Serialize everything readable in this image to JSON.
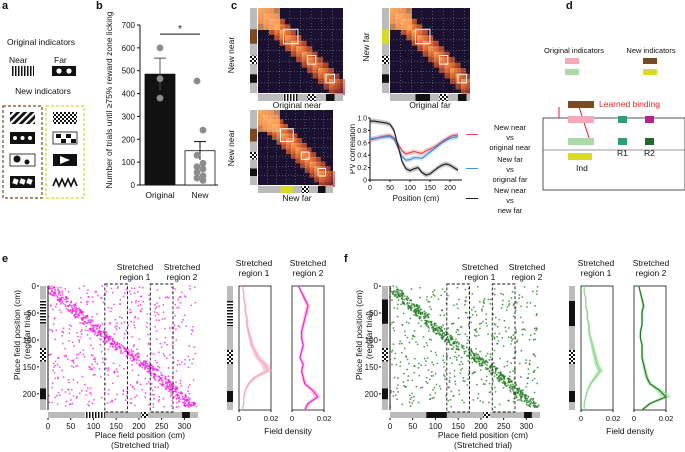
{
  "panels": {
    "a": "a",
    "b": "b",
    "c": "c",
    "d": "d",
    "e": "e",
    "f": "f"
  },
  "panel_a": {
    "original_title": "Original indicators",
    "near_label": "Near",
    "far_label": "Far",
    "new_title": "New indicators"
  },
  "panel_b": {
    "ylabel": "Number of trials until ≥75% reward zone licking",
    "significance": "*",
    "colors": {
      "original": "#111111",
      "new": "#ffffff",
      "dots": "#8c8c8c"
    }
  },
  "panel_c": {
    "mat1": {
      "ylabel": "New near",
      "xlabel": "Original near"
    },
    "mat2": {
      "ylabel": "New far",
      "xlabel": "Original far"
    },
    "mat3": {
      "ylabel": "New near",
      "xlabel": "New far"
    },
    "legend": [
      {
        "line1": "New near",
        "line2": "vs",
        "line3": "original near",
        "color": "#e8474f"
      },
      {
        "line1": "New far",
        "line2": "vs",
        "line3": "original far",
        "color": "#3d8fd6"
      },
      {
        "line1": "New near",
        "line2": "vs",
        "line3": "new far",
        "color": "#222222"
      }
    ]
  },
  "panel_d": {
    "original_title": "Original indicators",
    "new_title": "New indicators",
    "binding_label": "Learned binding",
    "ind_label": "Ind",
    "r1_label": "R1",
    "r2_label": "R2",
    "colors": {
      "orig_pink": "#f7a7b5",
      "orig_green": "#a8dba8",
      "new_brown": "#7a4a24",
      "new_yellow": "#d9d92a",
      "r1": "#2e9e74",
      "r2_pink": "#c21c8e",
      "r2_green": "#1f6b2a",
      "binding": "#d8262b"
    }
  },
  "panel_e": {
    "region1": "Stretched region 1",
    "region2": "Stretched region 2",
    "ylabel_line1": "Place field position (cm)",
    "ylabel_line2": "(regular trial)",
    "xlabel_line1": "Place field position (cm)",
    "xlabel_line2": "(Stretched trial)",
    "density_title1": "Stretched region 1",
    "density_title2": "Stretched region 2",
    "density_xlabel": "Field density",
    "color": "#ee22dd",
    "light_color": "#f7a8c2"
  },
  "panel_f": {
    "region1": "Stretched region 1",
    "region2": "Stretched region 2",
    "ylabel_line1": "Place field position (cm)",
    "ylabel_line2": "(regular trial)",
    "xlabel_line1": "Place field position (cm)",
    "xlabel_line2": "(Stretched trial)",
    "density_title1": "Stretched region 1",
    "density_title2": "Stretched region 2",
    "density_xlabel": "Field density",
    "color": "#1f7a1f",
    "light_color": "#8fd88f"
  },
  "chart_data": [
    {
      "id": "panel-b",
      "type": "bar",
      "categories": [
        "Original",
        "New"
      ],
      "values": [
        485,
        150
      ],
      "errors": [
        70,
        40
      ],
      "points": [
        [
          600,
          465,
          380
        ],
        [
          455,
          240,
          130,
          95,
          80,
          70,
          55,
          40,
          30,
          20
        ]
      ],
      "ylabel": "Number of trials until ≥75% reward zone licking",
      "ylim": [
        0,
        700
      ],
      "yticks": [
        "0",
        "100",
        "200",
        "300",
        "400",
        "500",
        "600",
        "700"
      ]
    },
    {
      "id": "panel-c-line",
      "type": "line",
      "xlabel": "Position (cm)",
      "ylabel": "PV correlation",
      "xlim": [
        0,
        230
      ],
      "ylim": [
        0,
        1
      ],
      "xticks": [
        "0",
        "50",
        "100",
        "150",
        "200"
      ],
      "yticks": [
        "0",
        "0.2",
        "0.4",
        "0.6",
        "0.8",
        "1.0"
      ],
      "x": [
        0,
        10,
        20,
        30,
        40,
        50,
        60,
        70,
        80,
        90,
        100,
        110,
        120,
        130,
        140,
        150,
        160,
        170,
        180,
        190,
        200,
        210,
        220
      ],
      "series": [
        {
          "name": "New near vs original near",
          "color": "#e8474f",
          "values": [
            0.65,
            0.66,
            0.68,
            0.7,
            0.71,
            0.72,
            0.68,
            0.58,
            0.47,
            0.42,
            0.44,
            0.46,
            0.44,
            0.43,
            0.47,
            0.5,
            0.53,
            0.57,
            0.62,
            0.66,
            0.7,
            0.72,
            0.73
          ]
        },
        {
          "name": "New far vs original far",
          "color": "#3d8fd6",
          "values": [
            0.66,
            0.67,
            0.68,
            0.69,
            0.7,
            0.7,
            0.66,
            0.52,
            0.38,
            0.32,
            0.33,
            0.36,
            0.36,
            0.35,
            0.4,
            0.45,
            0.5,
            0.55,
            0.6,
            0.64,
            0.67,
            0.69,
            0.7
          ]
        },
        {
          "name": "New near vs new far",
          "color": "#222222",
          "values": [
            0.95,
            0.95,
            0.94,
            0.93,
            0.92,
            0.9,
            0.8,
            0.55,
            0.3,
            0.18,
            0.15,
            0.18,
            0.2,
            0.12,
            0.08,
            0.1,
            0.15,
            0.2,
            0.24,
            0.26,
            0.24,
            0.2,
            0.16
          ]
        }
      ]
    },
    {
      "id": "panel-e-scatter",
      "type": "scatter",
      "xlabel": "Place field position (cm) (Stretched trial)",
      "ylabel": "Place field position (cm) (regular trial)",
      "xlim": [
        0,
        330
      ],
      "ylim": [
        230,
        0
      ],
      "xticks": [
        "0",
        "50",
        "100",
        "150",
        "200",
        "250",
        "300"
      ],
      "yticks": [
        "0",
        "50",
        "100",
        "150",
        "200"
      ]
    },
    {
      "id": "panel-e-density1",
      "type": "line",
      "title": "Stretched region 1",
      "xlabel": "Field density",
      "xlim": [
        0,
        0.02
      ],
      "xticks": [
        "0",
        "0.02"
      ],
      "profile": [
        0.002,
        0.003,
        0.003,
        0.004,
        0.004,
        0.005,
        0.005,
        0.006,
        0.007,
        0.008,
        0.01,
        0.012,
        0.016,
        0.018,
        0.01,
        0.006,
        0.004,
        0.003,
        0.003,
        0.002
      ]
    },
    {
      "id": "panel-e-density2",
      "type": "line",
      "title": "Stretched region 2",
      "xlabel": "Field density",
      "xlim": [
        0,
        0.02
      ],
      "xticks": [
        "0",
        "0.02"
      ],
      "profile": [
        0.004,
        0.006,
        0.008,
        0.01,
        0.009,
        0.008,
        0.007,
        0.006,
        0.006,
        0.007,
        0.006,
        0.005,
        0.007,
        0.006,
        0.007,
        0.008,
        0.013,
        0.016,
        0.01,
        0.008
      ]
    },
    {
      "id": "panel-f-scatter",
      "type": "scatter",
      "xlabel": "Place field position (cm) (Stretched trial)",
      "ylabel": "Place field position (cm) (regular trial)",
      "xlim": [
        0,
        330
      ],
      "ylim": [
        230,
        0
      ],
      "xticks": [
        "0",
        "50",
        "100",
        "150",
        "200",
        "250",
        "300"
      ],
      "yticks": [
        "0",
        "50",
        "100",
        "150",
        "200"
      ]
    },
    {
      "id": "panel-f-density1",
      "type": "line",
      "title": "Stretched region 1",
      "xlabel": "Field density",
      "xlim": [
        0,
        0.02
      ],
      "xticks": [
        "0",
        "0.02"
      ],
      "profile": [
        0.002,
        0.002,
        0.003,
        0.003,
        0.004,
        0.004,
        0.005,
        0.005,
        0.006,
        0.007,
        0.008,
        0.009,
        0.01,
        0.012,
        0.009,
        0.006,
        0.004,
        0.003,
        0.002,
        0.002
      ]
    },
    {
      "id": "panel-f-density2",
      "type": "line",
      "title": "Stretched region 2",
      "xlabel": "Field density",
      "xlim": [
        0,
        0.02
      ],
      "xticks": [
        "0",
        "0.02"
      ],
      "profile": [
        0.003,
        0.004,
        0.005,
        0.006,
        0.005,
        0.005,
        0.005,
        0.004,
        0.004,
        0.005,
        0.005,
        0.005,
        0.006,
        0.007,
        0.008,
        0.01,
        0.016,
        0.02,
        0.01,
        0.005
      ]
    }
  ]
}
